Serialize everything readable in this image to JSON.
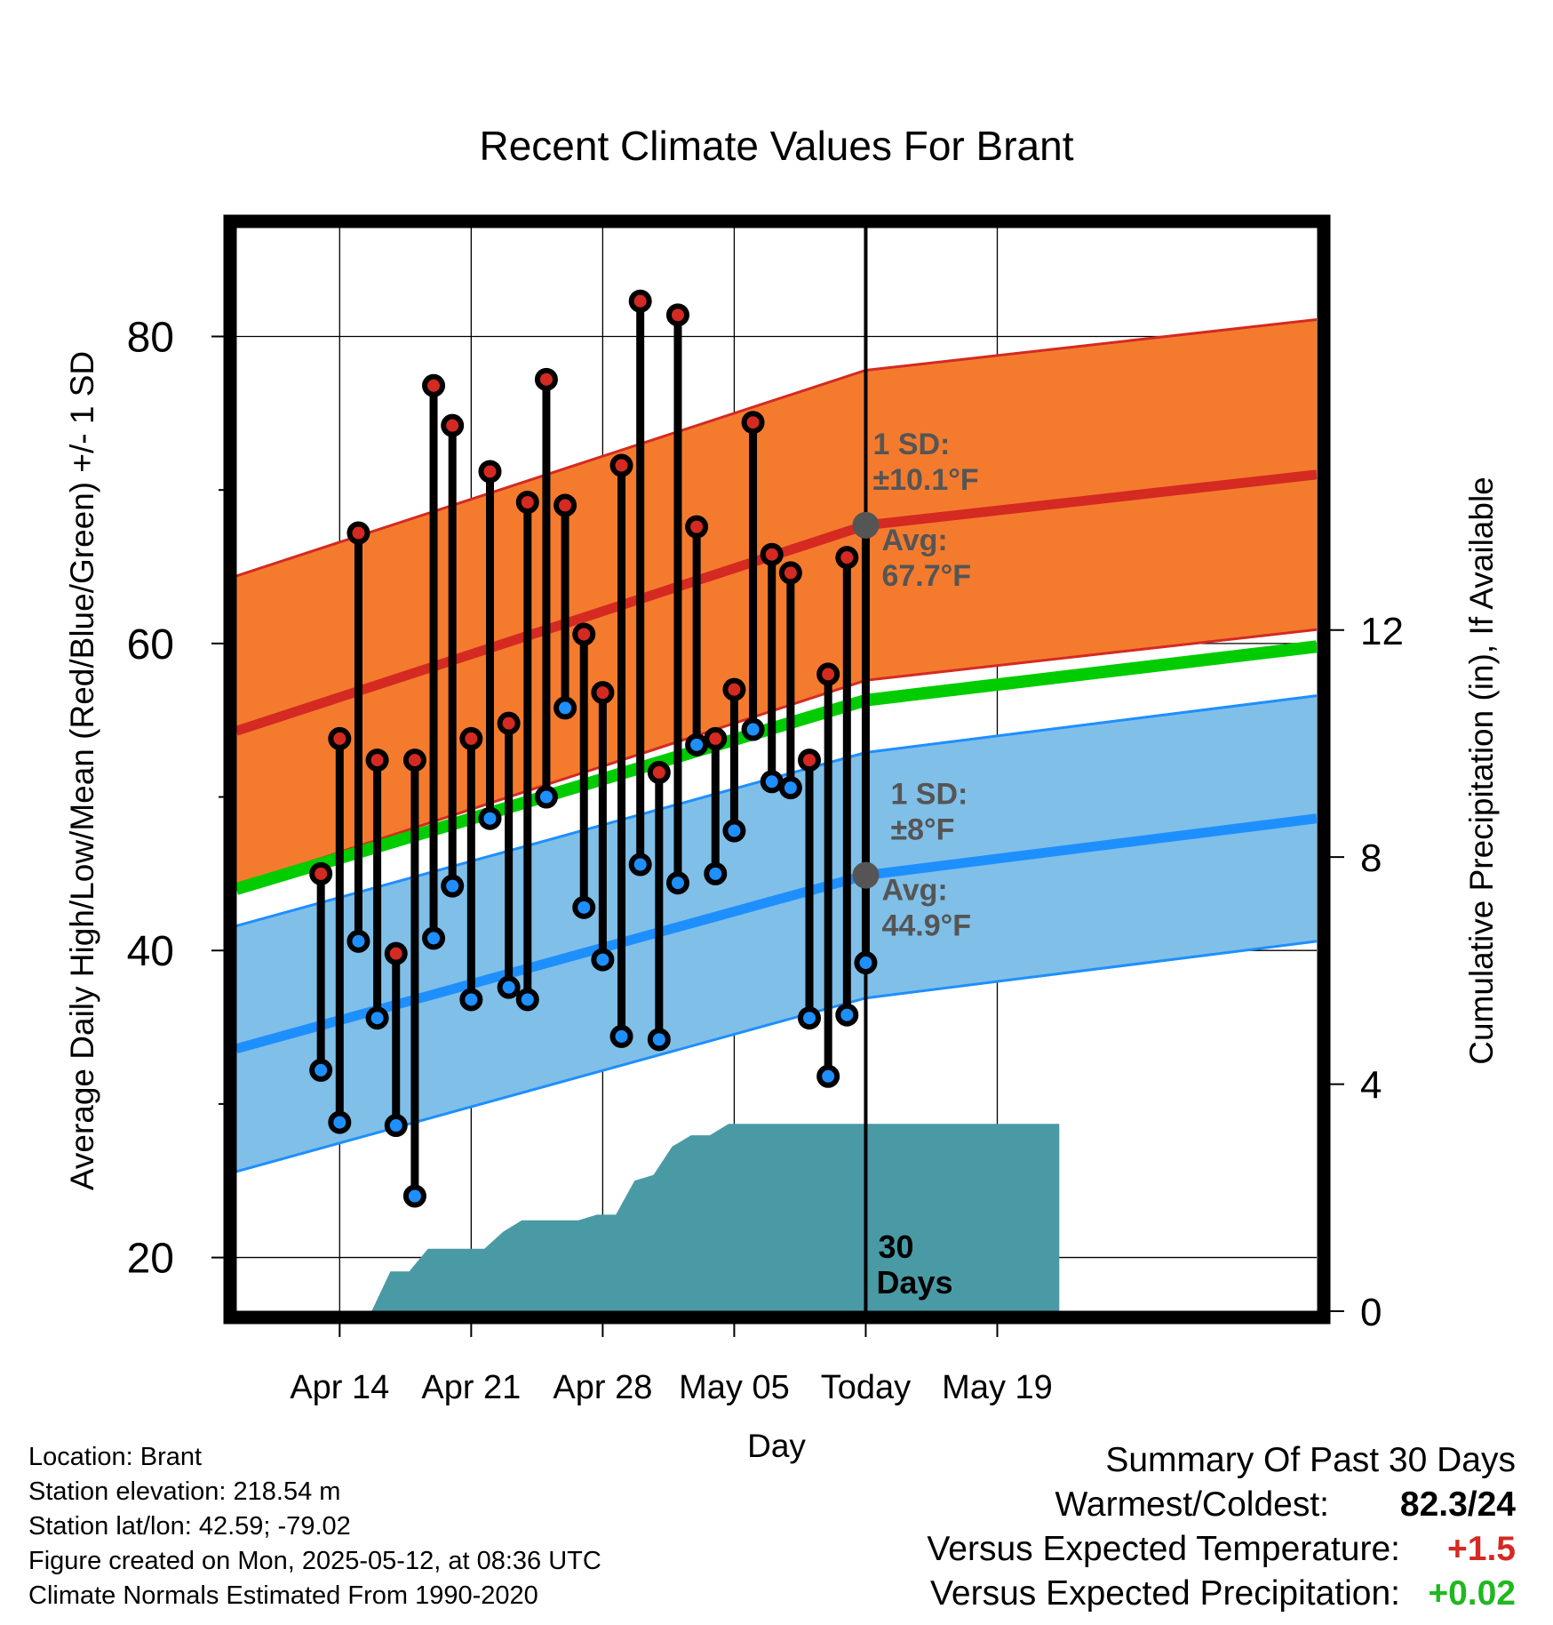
{
  "chart_data": {
    "type": "line",
    "title": "Recent Climate Values For Brant",
    "xlabel": "Day",
    "ylabel": "Average Daily High/Low/Mean (Red/Blue/Green) +/- 1 SD",
    "y2label": "Cumulative Precipitation (in), If Available",
    "ylim": [
      16.5,
      87.5
    ],
    "y2lim": [
      0,
      19.2
    ],
    "yticks": [
      20,
      40,
      60,
      80
    ],
    "y2ticks": [
      0,
      4,
      8,
      12
    ],
    "xrange": [
      -3.5,
      54
    ],
    "x_ticks": [
      {
        "x": 2,
        "label": "Apr 14"
      },
      {
        "x": 9,
        "label": "Apr 21"
      },
      {
        "x": 16,
        "label": "Apr 28"
      },
      {
        "x": 23,
        "label": "May 05"
      },
      {
        "x": 30,
        "label": "Today"
      },
      {
        "x": 37,
        "label": "May 19"
      }
    ],
    "grid": true,
    "daily_high": [
      45.0,
      53.8,
      67.2,
      52.4,
      39.8,
      52.4,
      76.8,
      74.2,
      53.8,
      71.2,
      54.8,
      69.2,
      77.2,
      69.0,
      60.6,
      56.8,
      71.6,
      82.3,
      51.6,
      81.4,
      67.6,
      53.8,
      57.0,
      74.4,
      65.8,
      64.6,
      52.4,
      58.0,
      65.6,
      67.6
    ],
    "daily_low": [
      32.2,
      28.8,
      40.6,
      35.6,
      28.6,
      24.0,
      40.8,
      44.2,
      36.8,
      48.6,
      37.6,
      36.8,
      50.0,
      55.8,
      42.8,
      39.4,
      34.4,
      45.6,
      34.2,
      44.4,
      53.4,
      45.0,
      47.8,
      54.4,
      51.0,
      50.6,
      35.6,
      31.8,
      35.8,
      39.2
    ],
    "normal_high": {
      "start": 54.3,
      "today": 67.7,
      "end": 71.0
    },
    "normal_low": {
      "start": 33.6,
      "today": 44.9,
      "end": 48.6
    },
    "normal_mean": {
      "start": 44.0,
      "today": 56.3,
      "end": 59.8
    },
    "high_sd": 10.1,
    "low_sd": 8.0,
    "cumulative_precipitation": {
      "x": [
        3.7,
        4.7,
        5.7,
        6.7,
        7.7,
        8.7,
        9.7,
        10.7,
        11.7,
        12.7,
        13.7,
        14.7,
        15.7,
        16.7,
        17.7,
        18.7,
        19.7,
        20.7,
        21.7,
        22.7,
        23.7,
        24.7,
        25.7,
        26.7,
        27.7,
        28.7,
        29.7,
        30.7,
        31.7,
        40.3
      ],
      "y": [
        0,
        0.7,
        0.7,
        1.1,
        1.1,
        1.1,
        1.1,
        1.4,
        1.6,
        1.6,
        1.6,
        1.6,
        1.7,
        1.7,
        2.3,
        2.4,
        2.9,
        3.1,
        3.1,
        3.3,
        3.3,
        3.3,
        3.3,
        3.3,
        3.3,
        3.3,
        3.3,
        3.3,
        3.3,
        3.3
      ]
    },
    "annotations": {
      "high_sd_label_1": "1 SD:",
      "high_sd_label_2": "±10.1°F",
      "high_avg_label_1": "Avg:",
      "high_avg_label_2": "67.7°F",
      "low_sd_label_1": "1 SD:",
      "low_sd_label_2": "±8°F",
      "low_avg_label_1": "Avg:",
      "low_avg_label_2": "44.9°F",
      "window_label_1": "30",
      "window_label_2": "Days"
    },
    "colors": {
      "high_band": "#f47b2e",
      "high_line": "#d42a22",
      "low_band": "#80bfe7",
      "low_line": "#1e8fff",
      "mean_line": "#00cc00",
      "precip": "#4a9aa6",
      "high_marker": "#d42a22",
      "low_marker": "#1e8fff",
      "annotation": "#555555"
    }
  },
  "info": {
    "location": "Location: Brant",
    "elevation": "Station elevation: 218.54 m",
    "latlon": "Station lat/lon: 42.59; -79.02",
    "created": "Figure created on Mon, 2025-05-12, at 08:36 UTC",
    "normals": "Climate Normals Estimated From 1990-2020"
  },
  "summary": {
    "title": "Summary Of Past 30 Days",
    "warm_cold_label": "Warmest/Coldest:",
    "warm_value": "82.3",
    "cold_value": "/24",
    "temp_label": "Versus Expected Temperature:",
    "temp_value": "+1.5",
    "temp_color": "#d42a22",
    "precip_label": "Versus Expected Precipitation:",
    "precip_value": "+0.02",
    "precip_color": "#1fb81f"
  }
}
